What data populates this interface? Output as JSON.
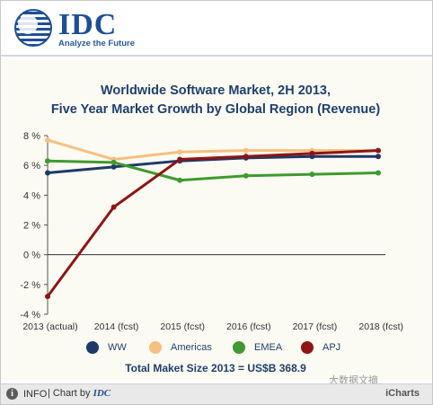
{
  "logo": {
    "word": "IDC",
    "tagline": "Analyze the Future"
  },
  "title": {
    "line1": "Worldwide Software Market, 2H 2013,",
    "line2": "Five Year Market Growth by Global Region (Revenue)"
  },
  "total": "Total Maket Size 2013 = US$B 368.9",
  "footer": {
    "info_label": "INFO",
    "chart_by": "| Chart by",
    "brand": "IDC",
    "icharts": "iCharts",
    "watermark": "大数据文摘"
  },
  "colors": {
    "WW": "#1f3867",
    "Americas": "#f7bf80",
    "EMEA": "#3f9a2f",
    "APJ": "#8f1414"
  },
  "chart_data": {
    "type": "line",
    "title": "Worldwide Software Market, 2H 2013, Five Year Market Growth by Global Region (Revenue)",
    "categories": [
      "2013 (actual)",
      "2014 (fcst)",
      "2015 (fcst)",
      "2016 (fcst)",
      "2017 (fcst)",
      "2018 (fcst)"
    ],
    "y_ticks": [
      "8 %",
      "6 %",
      "4 %",
      "2 %",
      "0 %",
      "-2 %",
      "-4 %"
    ],
    "ylim": [
      -4,
      8
    ],
    "grid": false,
    "legend_position": "bottom",
    "series": [
      {
        "name": "WW",
        "values": [
          5.5,
          5.9,
          6.3,
          6.5,
          6.6,
          6.6
        ]
      },
      {
        "name": "Americas",
        "values": [
          7.7,
          6.4,
          6.9,
          7.0,
          7.0,
          7.0
        ]
      },
      {
        "name": "EMEA",
        "values": [
          6.3,
          6.2,
          5.0,
          5.3,
          5.4,
          5.5
        ]
      },
      {
        "name": "APJ",
        "values": [
          -2.8,
          3.2,
          6.4,
          6.6,
          6.8,
          7.0
        ]
      }
    ]
  }
}
